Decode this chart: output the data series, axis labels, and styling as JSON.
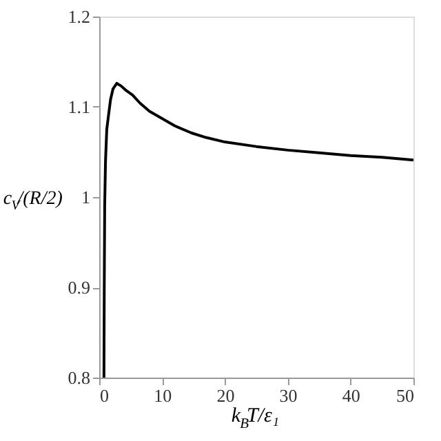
{
  "chart_data": {
    "type": "line",
    "xlabel": "k$_{B}$T/ε₁",
    "ylabel": "c$_{V}$/(R/2)",
    "x": [
      0.75,
      0.8,
      0.87,
      1.0,
      1.2,
      1.47,
      1.8,
      2.2,
      2.8,
      3.5,
      4.3,
      5.3,
      6.5,
      8,
      10,
      12,
      14.7,
      17,
      20,
      25,
      30,
      35,
      40,
      45,
      50
    ],
    "series": [
      {
        "color": "#000000",
        "values": [
          0.8,
          0.9,
          0.99,
          1.04,
          1.075,
          1.09,
          1.108,
          1.12,
          1.126,
          1.123,
          1.118,
          1.113,
          1.104,
          1.095,
          1.087,
          1.079,
          1.071,
          1.066,
          1.061,
          1.056,
          1.052,
          1.049,
          1.046,
          1.044,
          1.041
        ]
      }
    ],
    "xlim": [
      0,
      50
    ],
    "ylim": [
      0.8,
      1.2
    ],
    "xticks": [
      0,
      10,
      20,
      30,
      40,
      50
    ],
    "yticks": [
      0.8,
      0.9,
      {
        "value": 1,
        "label": "1"
      },
      1.1,
      1.2
    ],
    "grid": false,
    "marker": "none",
    "line_style": "solid"
  }
}
